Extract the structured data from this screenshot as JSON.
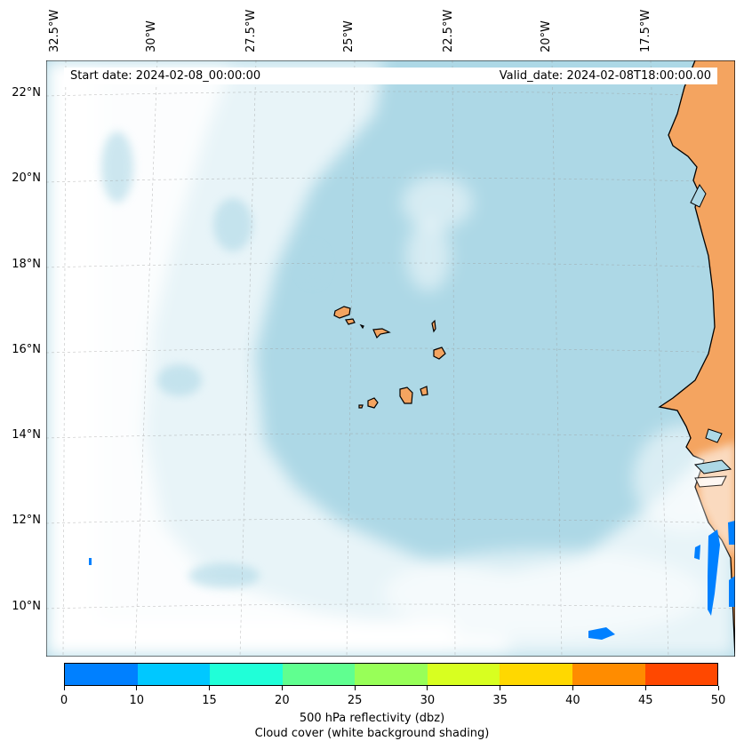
{
  "header": {
    "start_date": "Start date: 2024-02-08_00:00:00",
    "valid_date": "Valid_date: 2024-02-08T18:00:00.00"
  },
  "longitude_labels": [
    "32.5°W",
    "30°W",
    "27.5°W",
    "25°W",
    "22.5°W",
    "20°W",
    "17.5°W"
  ],
  "latitude_labels": [
    "22°N",
    "20°N",
    "18°N",
    "16°N",
    "14°N",
    "12°N",
    "10°N"
  ],
  "colorbar": {
    "ticks": [
      "0",
      "10",
      "15",
      "20",
      "25",
      "30",
      "35",
      "40",
      "45",
      "50"
    ],
    "colors": [
      "#0080ff",
      "#00c8ff",
      "#20ffd8",
      "#60ff90",
      "#98ff58",
      "#d8ff20",
      "#ffd800",
      "#ff8c00",
      "#ff4800"
    ],
    "label_line1": "500 hPa reflectivity (dbz)",
    "label_line2": "Cloud cover (white background shading)"
  },
  "colors": {
    "ocean": "#add8e6",
    "land": "#f4a460",
    "cloud": "#ffffff",
    "reflectivity": "#0080ff"
  },
  "map_features": {
    "islands": "Cape Verde islands",
    "coastline": "West African coast"
  }
}
